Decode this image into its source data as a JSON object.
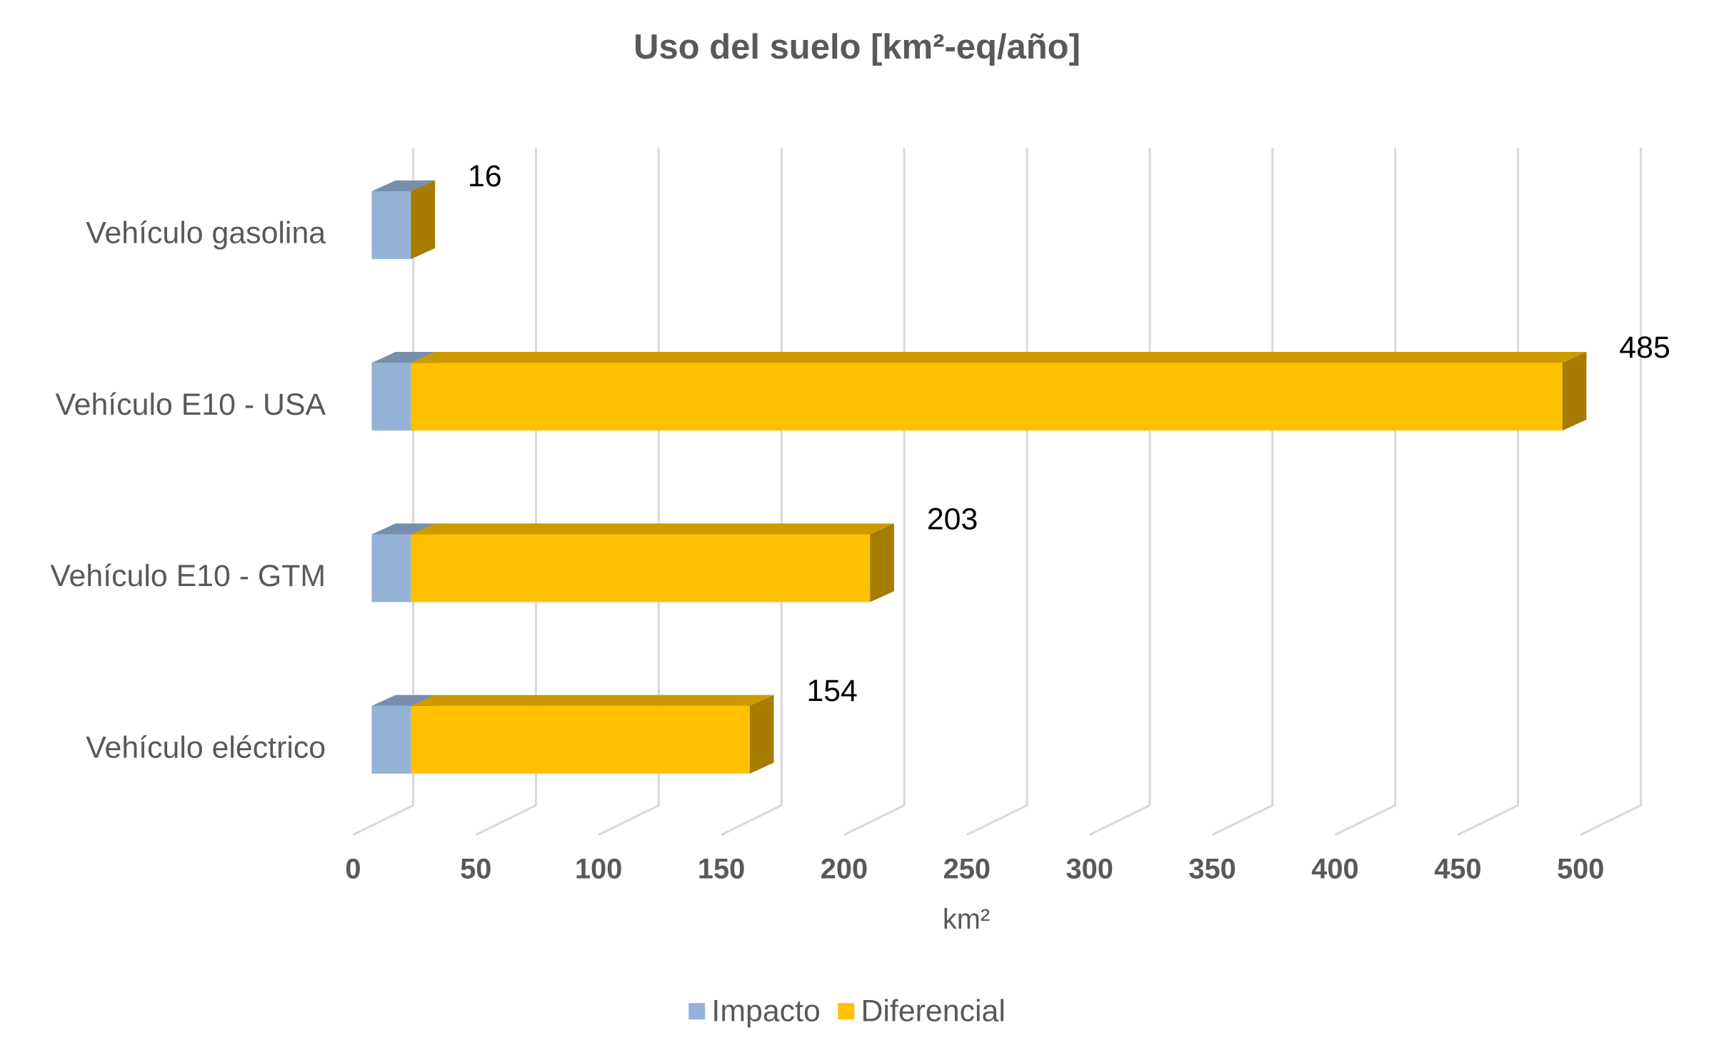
{
  "chart_data": {
    "type": "bar3d_stacked_horizontal",
    "title": "Uso del suelo [km²-eq/año]",
    "x_label": "km²",
    "categories": [
      "Vehículo gasolina",
      "Vehículo E10 - USA",
      "Vehículo E10 - GTM",
      "Vehículo eléctrico"
    ],
    "series": [
      {
        "name": "Impacto",
        "color": "#95b3d7",
        "values": [
          16,
          16,
          16,
          16
        ]
      },
      {
        "name": "Diferencial",
        "color": "#ffc000",
        "values": [
          0,
          469,
          187,
          138
        ]
      }
    ],
    "totals": [
      16,
      485,
      203,
      154
    ],
    "xlim": [
      0,
      500
    ],
    "xticks": [
      0,
      50,
      100,
      150,
      200,
      250,
      300,
      350,
      400,
      450,
      500
    ],
    "grid": true,
    "legend": "bottom"
  }
}
